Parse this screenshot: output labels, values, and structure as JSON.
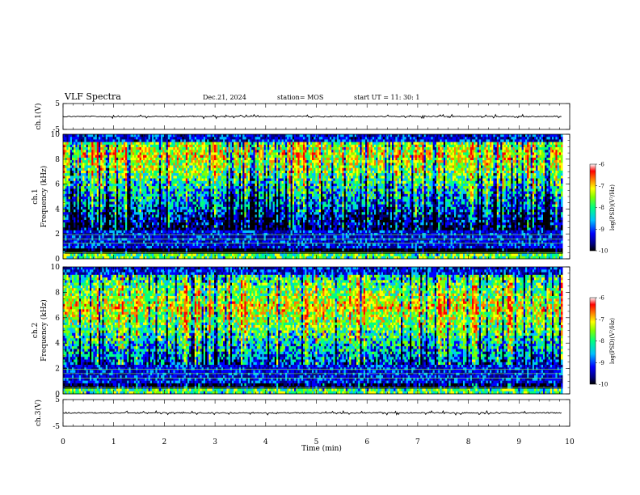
{
  "header": {
    "title": "VLF Spectra",
    "date": "Dec.21, 2024",
    "station": "station= MOS",
    "start_ut": "start  UT =   11: 30: 1"
  },
  "chart_data": [
    {
      "type": "line",
      "name": "channel-1-waveform",
      "ylabel": "ch.1(V)",
      "ylim": [
        -5,
        5
      ],
      "y_ticks": [
        "5",
        "-5"
      ],
      "baseline": 0
    },
    {
      "type": "heatmap",
      "name": "channel-1-spectrogram",
      "ylabel": "ch.1\nFrequency (kHz)",
      "ylabel_line1": "ch.1",
      "ylabel_line2": "Frequency (kHz)",
      "ylim": [
        0,
        10
      ],
      "y_ticks": [
        "0",
        "2",
        "4",
        "6",
        "8",
        "10"
      ],
      "colorbar": {
        "label": "log(PSD)(V²/Hz)",
        "range": [
          -10,
          -6
        ],
        "ticks": [
          "-6",
          "-7",
          "-8",
          "-9",
          "-10"
        ]
      }
    },
    {
      "type": "heatmap",
      "name": "channel-2-spectrogram",
      "ylabel": "ch.2\nFrequency (kHz)",
      "ylabel_line1": "ch.2",
      "ylabel_line2": "Frequency (kHz)",
      "ylim": [
        0,
        10
      ],
      "y_ticks": [
        "0",
        "2",
        "4",
        "6",
        "8",
        "10"
      ],
      "colorbar": {
        "label": "log(PSD)(V²/Hz)",
        "range": [
          -10,
          -6
        ],
        "ticks": [
          "-6",
          "-7",
          "-8",
          "-9",
          "-10"
        ]
      }
    },
    {
      "type": "line",
      "name": "channel-3-waveform",
      "ylabel": "ch.3(V)",
      "ylim": [
        -5,
        5
      ],
      "y_ticks": [
        "5",
        "-5"
      ],
      "baseline": 0
    }
  ],
  "x_axis": {
    "label": "Time  (min)",
    "xlim": [
      0,
      10
    ],
    "ticks": [
      "0",
      "1",
      "2",
      "3",
      "4",
      "5",
      "6",
      "7",
      "8",
      "9",
      "10"
    ],
    "data_end": 9.85
  },
  "colors": {
    "scale": [
      "#000000",
      "#000080",
      "#0000ff",
      "#00c0ff",
      "#00ff80",
      "#80ff00",
      "#ffff00",
      "#ff8000",
      "#ff0000",
      "#ffffff"
    ]
  }
}
